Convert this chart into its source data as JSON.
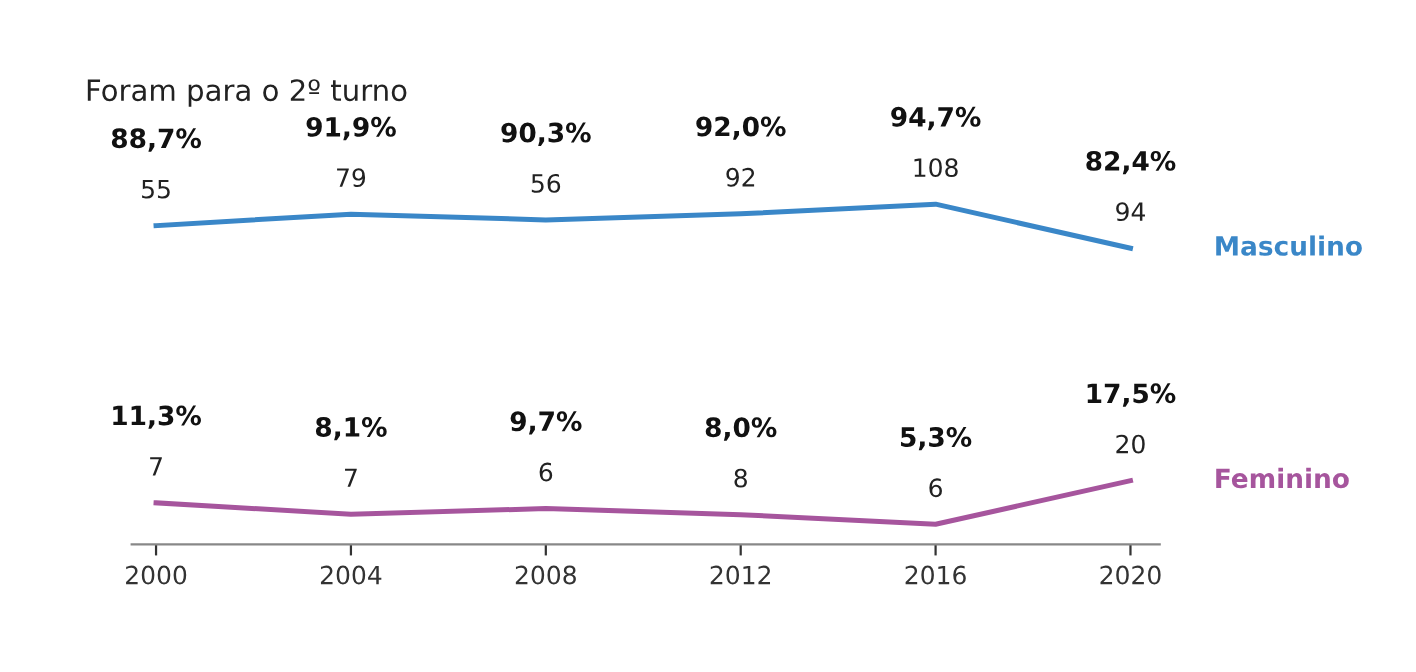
{
  "chart_data": {
    "type": "line",
    "title": "Foram para o 2º turno",
    "x": [
      2000,
      2004,
      2008,
      2012,
      2016,
      2020
    ],
    "xlim": [
      1999.5,
      2020.6
    ],
    "xticks": [
      2000,
      2004,
      2008,
      2012,
      2016,
      2020
    ],
    "tick_labels": "x",
    "grid": false,
    "legend": false,
    "marker": "none",
    "line_style": "solid",
    "series": [
      {
        "name": "Masculino",
        "color": "#3a87c8",
        "values": [
          88.7,
          91.9,
          90.3,
          92.0,
          94.7,
          82.4
        ],
        "value_labels": [
          "88,7%",
          "91,9%",
          "90,3%",
          "92,0%",
          "94,7%",
          "82,4%"
        ]
      },
      {
        "name": "Feminino",
        "color": "#a6559d",
        "values": [
          11.3,
          8.1,
          9.7,
          8.0,
          5.3,
          17.5
        ],
        "value_labels": [
          "11,3%",
          "8,1%",
          "9,7%",
          "8,0%",
          "5,3%",
          "17,5%"
        ]
      }
    ],
    "annotations": [
      {
        "text": "55",
        "x": 2000,
        "y": 88.7
      },
      {
        "text": "79",
        "x": 2004,
        "y": 91.9
      },
      {
        "text": "56",
        "x": 2008,
        "y": 90.3
      },
      {
        "text": "92",
        "x": 2012,
        "y": 92.0
      },
      {
        "text": "108",
        "x": 2016,
        "y": 94.7
      },
      {
        "text": "94",
        "x": 2020,
        "y": 82.4
      },
      {
        "text": "7",
        "x": 2000,
        "y": 11.3
      },
      {
        "text": "7",
        "x": 2004,
        "y": 8.1
      },
      {
        "text": "6",
        "x": 2008,
        "y": 9.7
      },
      {
        "text": "8",
        "x": 2012,
        "y": 8.0
      },
      {
        "text": "6",
        "x": 2016,
        "y": 5.3
      },
      {
        "text": "20",
        "x": 2020,
        "y": 17.5
      }
    ]
  }
}
